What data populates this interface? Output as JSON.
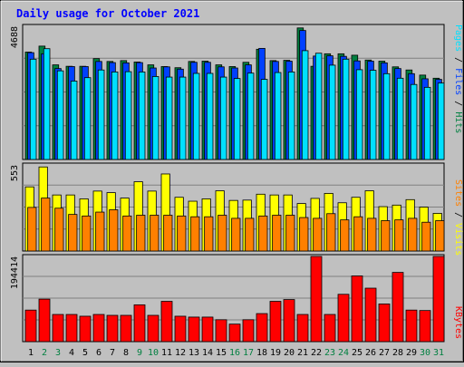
{
  "chart_data": [
    {
      "type": "bar",
      "title": "Daily usage for October 2021",
      "categories": [
        "1",
        "2",
        "3",
        "4",
        "5",
        "6",
        "7",
        "8",
        "9",
        "10",
        "11",
        "12",
        "13",
        "14",
        "15",
        "16",
        "17",
        "18",
        "19",
        "20",
        "21",
        "22",
        "23",
        "24",
        "25",
        "26",
        "27",
        "28",
        "29",
        "30",
        "31"
      ],
      "weekend_days": [
        "2",
        "3",
        "9",
        "10",
        "16",
        "17",
        "23",
        "24",
        "30",
        "31"
      ],
      "ylabel": "Pages / Files / Hits",
      "ytick_label": "4688",
      "ylim": [
        0,
        4688
      ],
      "grid": true,
      "series": [
        {
          "name": "Hits",
          "color": "#008040",
          "values": [
            3780,
            3990,
            3330,
            3280,
            3280,
            3550,
            3450,
            3480,
            3430,
            3330,
            3270,
            3230,
            3450,
            3460,
            3330,
            3270,
            3420,
            3880,
            3480,
            3490,
            4630,
            3280,
            3720,
            3720,
            3670,
            3500,
            3460,
            3260,
            3150,
            2970,
            2860
          ]
        },
        {
          "name": "Files",
          "color": "#0040FF",
          "values": [
            3760,
            3720,
            3200,
            3270,
            3270,
            3450,
            3410,
            3400,
            3410,
            3220,
            3260,
            3180,
            3420,
            3420,
            3260,
            3220,
            3330,
            3910,
            3450,
            3460,
            4540,
            3640,
            3650,
            3630,
            3470,
            3460,
            3400,
            3200,
            3020,
            2840,
            2820
          ]
        },
        {
          "name": "Pages",
          "color": "#00E0FF",
          "values": [
            3530,
            3900,
            3120,
            2760,
            2880,
            3150,
            3080,
            3090,
            3080,
            2920,
            2900,
            2900,
            3030,
            3030,
            2900,
            2850,
            3040,
            2820,
            3060,
            3080,
            3830,
            3740,
            3320,
            3530,
            3160,
            3140,
            3020,
            2860,
            2640,
            2540,
            2690
          ]
        }
      ]
    },
    {
      "type": "bar",
      "ylabel": "Sites / Visits",
      "ytick_label": "553",
      "ylim": [
        0,
        553
      ],
      "grid": true,
      "series": [
        {
          "name": "Visits",
          "color": "#FFFF00",
          "values": [
            412,
            540,
            360,
            360,
            335,
            385,
            375,
            340,
            445,
            385,
            495,
            345,
            320,
            335,
            387,
            325,
            327,
            365,
            360,
            360,
            305,
            338,
            370,
            310,
            345,
            387,
            285,
            295,
            330,
            282,
            242
          ]
        },
        {
          "name": "Sites",
          "color": "#FF8000",
          "values": [
            280,
            340,
            275,
            235,
            225,
            250,
            265,
            225,
            230,
            230,
            230,
            225,
            220,
            220,
            230,
            210,
            210,
            225,
            230,
            230,
            215,
            210,
            240,
            200,
            220,
            210,
            195,
            200,
            210,
            185,
            195
          ]
        }
      ]
    },
    {
      "type": "bar",
      "ylabel": "KBytes",
      "ytick_label": "194414",
      "ylim": [
        0,
        194414
      ],
      "grid": true,
      "series": [
        {
          "name": "KBytes",
          "color": "#FF0000",
          "values": [
            72000,
            97000,
            62000,
            62000,
            58000,
            62000,
            60000,
            60000,
            84000,
            60000,
            92000,
            58000,
            56000,
            56000,
            50000,
            40000,
            50000,
            64000,
            92000,
            96000,
            62000,
            194414,
            62000,
            108000,
            150000,
            122000,
            86000,
            158000,
            72000,
            71000,
            194414
          ]
        }
      ]
    }
  ]
}
